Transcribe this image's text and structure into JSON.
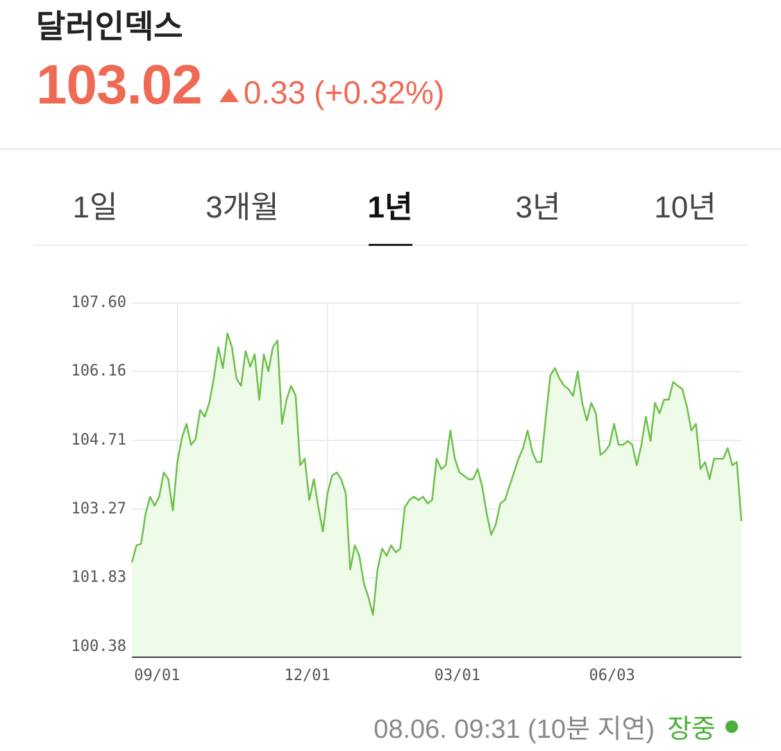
{
  "header": {
    "title": "달러인덱스",
    "price": "103.02",
    "change": "0.33",
    "change_pct": "(+0.32%)"
  },
  "tabs": [
    "1일",
    "3개월",
    "1년",
    "3년",
    "10년"
  ],
  "chart_data": {
    "type": "line",
    "color": "#6cc04a",
    "area_color": "#effbe9",
    "grid": true,
    "categories": [
      null,
      null,
      null,
      null,
      null,
      null,
      null,
      null,
      null,
      null,
      "09/01",
      null,
      null,
      null,
      null,
      null,
      null,
      null,
      null,
      null,
      null,
      null,
      null,
      null,
      null,
      null,
      null,
      null,
      null,
      null,
      null,
      null,
      null,
      null,
      null,
      null,
      null,
      null,
      null,
      null,
      null,
      null,
      null,
      "12/01",
      null,
      null,
      null,
      null,
      null,
      null,
      null,
      null,
      null,
      null,
      null,
      null,
      null,
      null,
      null,
      null,
      null,
      null,
      null,
      null,
      null,
      null,
      null,
      null,
      null,
      null,
      null,
      null,
      null,
      null,
      null,
      null,
      "03/01",
      null,
      null,
      null,
      null,
      null,
      null,
      null,
      null,
      null,
      null,
      null,
      null,
      null,
      null,
      null,
      null,
      null,
      null,
      null,
      null,
      null,
      null,
      null,
      null,
      null,
      null,
      null,
      null,
      null,
      null,
      null,
      null,
      null,
      "06/03",
      null,
      null,
      null,
      null,
      null,
      null,
      null,
      null,
      null,
      null,
      null,
      null,
      null,
      null,
      null,
      null,
      null,
      null,
      null,
      null,
      null,
      null,
      null,
      null
    ],
    "values": [
      102.15,
      102.51,
      102.54,
      103.17,
      103.53,
      103.34,
      103.53,
      104.04,
      103.9,
      103.24,
      104.26,
      104.77,
      105.06,
      104.62,
      104.74,
      105.35,
      105.21,
      105.5,
      106.01,
      106.67,
      106.23,
      106.96,
      106.67,
      106.01,
      105.86,
      106.59,
      106.26,
      106.52,
      105.57,
      106.52,
      106.16,
      106.67,
      106.81,
      105.06,
      105.57,
      105.86,
      105.65,
      104.19,
      104.33,
      103.46,
      103.9,
      103.31,
      102.8,
      103.6,
      103.97,
      104.04,
      103.9,
      103.6,
      102.0,
      102.51,
      102.29,
      101.71,
      101.42,
      101.05,
      102.0,
      102.44,
      102.29,
      102.51,
      102.36,
      102.44,
      103.31,
      103.46,
      103.53,
      103.46,
      103.53,
      103.39,
      103.46,
      104.33,
      104.11,
      104.19,
      104.92,
      104.33,
      104.04,
      103.97,
      103.9,
      103.9,
      104.11,
      103.75,
      103.17,
      102.73,
      102.95,
      103.39,
      103.46,
      103.75,
      104.04,
      104.33,
      104.55,
      104.92,
      104.48,
      104.26,
      104.26,
      105.21,
      106.08,
      106.23,
      106.01,
      105.86,
      105.79,
      105.65,
      106.16,
      105.5,
      105.13,
      105.5,
      105.28,
      104.41,
      104.48,
      104.62,
      105.06,
      104.62,
      104.62,
      104.7,
      104.62,
      104.19,
      104.62,
      105.21,
      104.7,
      105.5,
      105.28,
      105.57,
      105.57,
      105.94,
      105.86,
      105.79,
      105.43,
      104.92,
      105.06,
      104.11,
      104.26,
      103.9,
      104.33,
      104.33,
      104.33,
      104.55,
      104.19,
      104.26,
      103.02
    ],
    "ylim": [
      100.16,
      107.6
    ],
    "yticks": [
      {
        "value": 107.6,
        "label": "107.60"
      },
      106.16,
      104.71,
      103.27,
      101.83,
      100.38
    ]
  },
  "footer": {
    "timestamp": "08.06. 09:31 (10분 지연)",
    "status": "장중"
  }
}
